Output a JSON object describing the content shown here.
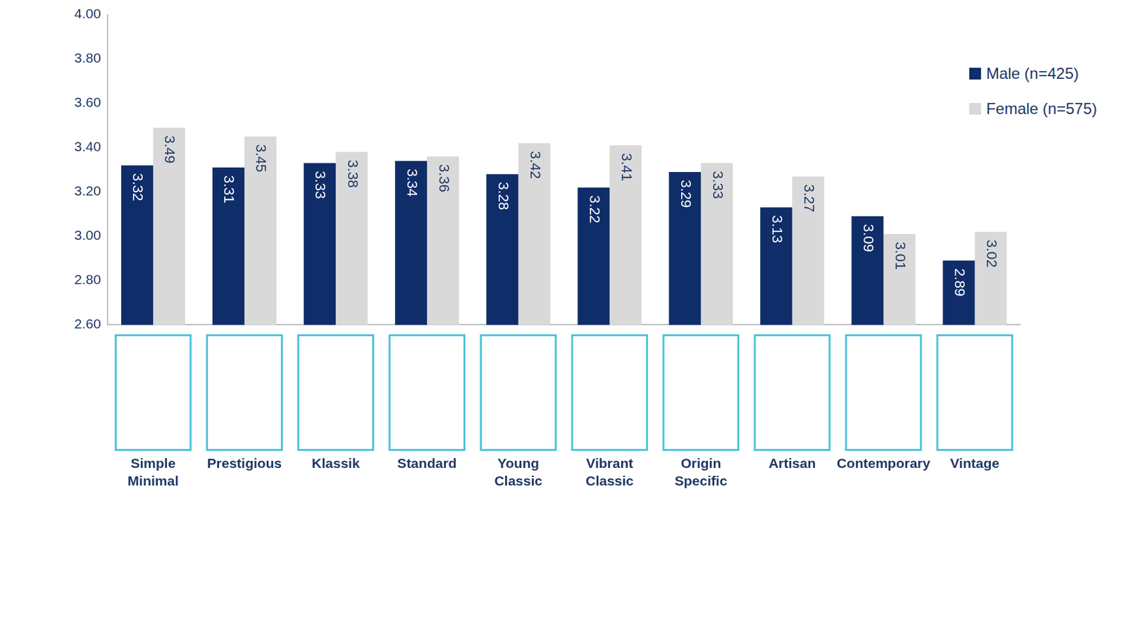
{
  "chart_data": {
    "type": "bar",
    "categories": [
      "Simple Minimal",
      "Prestigious",
      "Klassik",
      "Standard",
      "Young Classic",
      "Vibrant Classic",
      "Origin Specific",
      "Artisan",
      "Contemporary",
      "Vintage"
    ],
    "series": [
      {
        "name": "Male (n=425)",
        "color": "#0f2d69",
        "values": [
          3.32,
          3.31,
          3.33,
          3.34,
          3.28,
          3.22,
          3.29,
          3.13,
          3.09,
          2.89
        ]
      },
      {
        "name": "Female (n=575)",
        "color": "#d9d9d9",
        "values": [
          3.49,
          3.45,
          3.38,
          3.36,
          3.42,
          3.41,
          3.33,
          3.27,
          3.01,
          3.02
        ]
      }
    ],
    "ylim": [
      2.6,
      4.0
    ],
    "yticks": [
      {
        "value": 2.6,
        "label": "2.60"
      },
      {
        "value": 2.8,
        "label": "2.80"
      },
      {
        "value": 3.0,
        "label": "3.00"
      },
      {
        "value": 3.2,
        "label": "3.20"
      },
      {
        "value": 3.4,
        "label": "3.40"
      },
      {
        "value": 3.6,
        "label": "3.60"
      },
      {
        "value": 3.8,
        "label": "3.80"
      },
      {
        "value": 4.0,
        "label": "4.00"
      }
    ],
    "grid": false,
    "legend": "upper right",
    "data_labels": true
  }
}
